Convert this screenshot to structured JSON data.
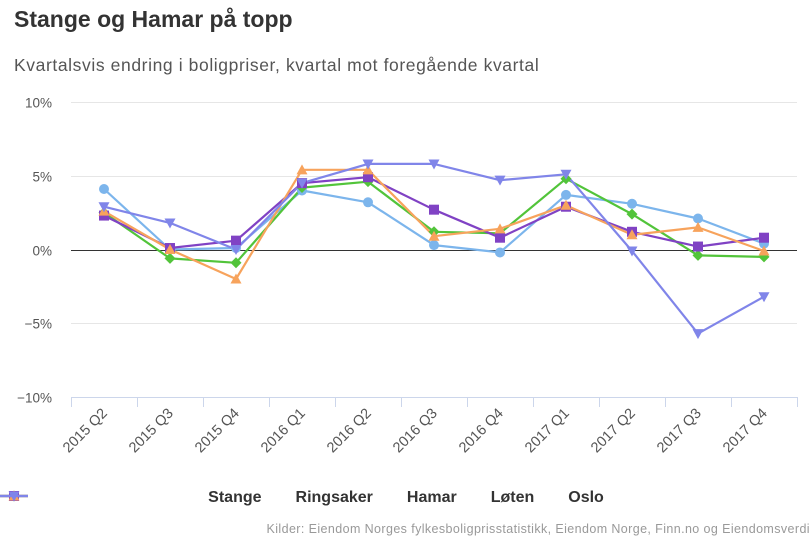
{
  "header": {
    "title": "Stange og Hamar på topp",
    "subtitle": "Kvartalsvis endring i boligpriser, kvartal mot foregående kvartal"
  },
  "credits": "Kilder: Eiendom Norges fylkesboligprisstatistikk, Eiendom Norge, Finn.no og Eiendomsverdi",
  "chart_data": {
    "type": "line",
    "title": "Stange og Hamar på topp",
    "subtitle": "Kvartalsvis endring i boligpriser, kvartal mot foregående kvartal",
    "xlabel": "",
    "ylabel": "",
    "ylim": [
      -10,
      10
    ],
    "yticks": [
      10,
      5,
      0,
      -5,
      -10
    ],
    "ytick_labels": [
      "10%",
      "5%",
      "0%",
      "−5%",
      "−10%"
    ],
    "grid": true,
    "legend": "bottom",
    "categories": [
      "2015 Q2",
      "2015 Q3",
      "2015 Q4",
      "2016 Q1",
      "2016 Q2",
      "2016 Q3",
      "2016 Q4",
      "2017 Q1",
      "2017 Q2",
      "2017 Q3",
      "2017 Q4"
    ],
    "series": [
      {
        "name": "Stange",
        "color": "#7cb5ec",
        "marker": "circle",
        "values": [
          4.1,
          0.0,
          0.1,
          4.0,
          3.2,
          0.3,
          -0.2,
          3.7,
          3.1,
          2.1,
          0.4
        ]
      },
      {
        "name": "Ringsaker",
        "color": "#52c43a",
        "marker": "diamond",
        "values": [
          2.5,
          -0.6,
          -0.9,
          4.2,
          4.6,
          1.2,
          1.1,
          4.8,
          2.4,
          -0.4,
          -0.5
        ]
      },
      {
        "name": "Hamar",
        "color": "#8042c4",
        "marker": "square",
        "values": [
          2.3,
          0.1,
          0.6,
          4.5,
          4.9,
          2.7,
          0.8,
          2.9,
          1.2,
          0.2,
          0.8
        ]
      },
      {
        "name": "Løten",
        "color": "#f7a35c",
        "marker": "triangle",
        "values": [
          2.6,
          0.0,
          -2.0,
          5.4,
          5.4,
          0.9,
          1.4,
          3.0,
          1.0,
          1.5,
          -0.1
        ]
      },
      {
        "name": "Oslo",
        "color": "#8085e9",
        "marker": "triangle-down",
        "values": [
          2.9,
          1.8,
          0.0,
          4.5,
          5.8,
          5.8,
          4.7,
          5.1,
          -0.1,
          -5.7,
          -3.2
        ]
      }
    ]
  }
}
